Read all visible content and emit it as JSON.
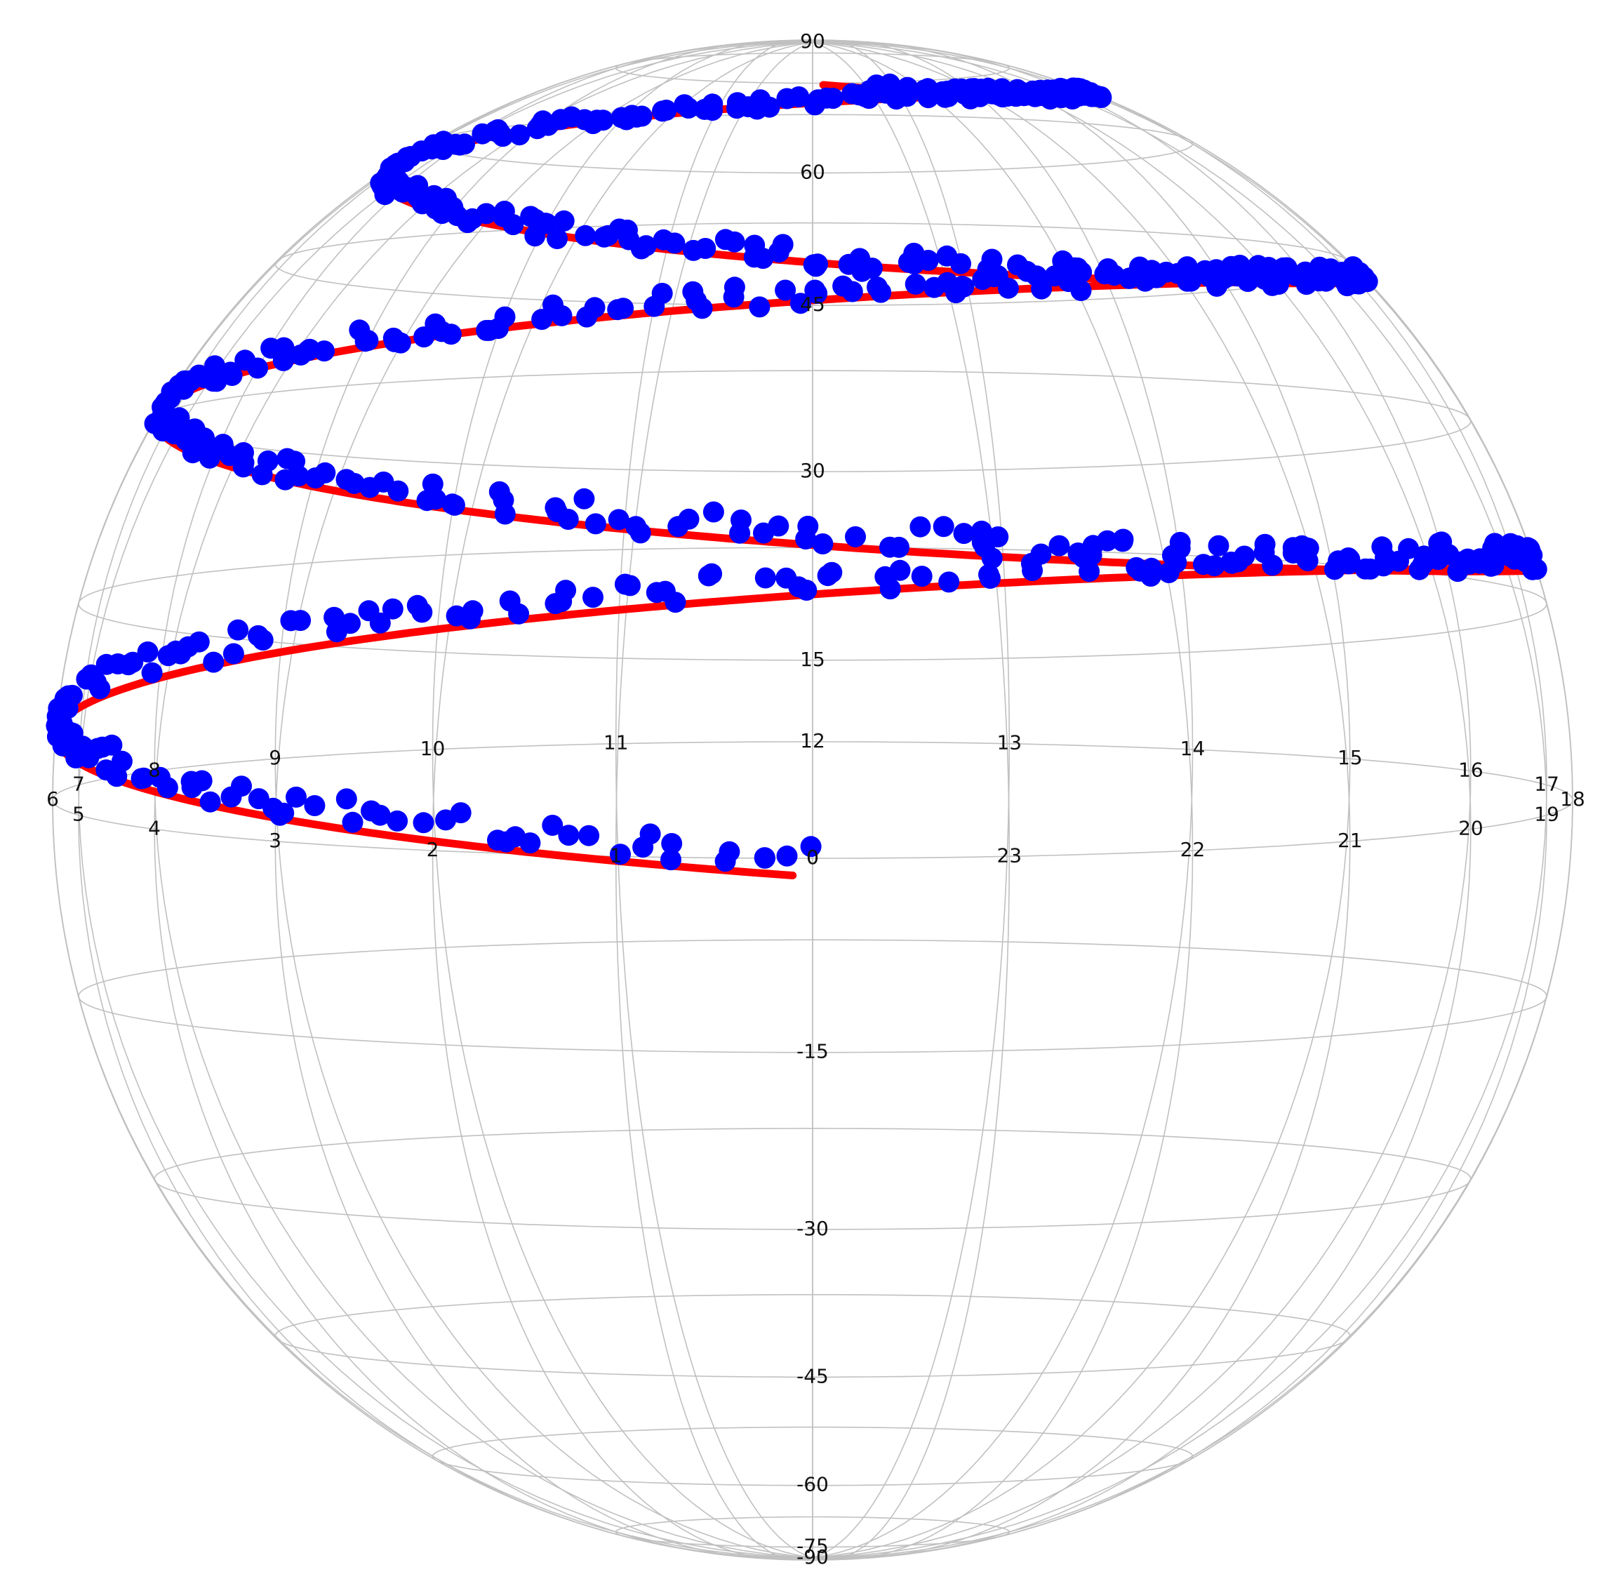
{
  "chart_data": {
    "type": "scatter",
    "projection": "orthographic globe (right ascension / declination)",
    "title": "",
    "grid": true,
    "colors": {
      "grid": "#c0c0c0",
      "line": "#ff0000",
      "points": "#0000ff",
      "text": "#111111"
    },
    "ra_tick_labels": [
      "0",
      "1",
      "2",
      "3",
      "4",
      "5",
      "6",
      "7",
      "8",
      "9",
      "10",
      "11",
      "12",
      "13",
      "14",
      "15",
      "16",
      "17",
      "18",
      "19",
      "20",
      "21",
      "22",
      "23"
    ],
    "dec_tick_labels": [
      "-90",
      "-75",
      "-60",
      "-45",
      "-30",
      "-15",
      "0",
      "15",
      "30",
      "45",
      "60",
      "90"
    ],
    "dec_gridlines": [
      -75,
      -60,
      -45,
      -30,
      -15,
      0,
      15,
      30,
      45,
      60,
      75
    ],
    "series": [
      {
        "kind": "line",
        "description": "smooth spiral curve (RA in hours, Dec in degrees)",
        "ra_start": 0.1,
        "ra_end": 71.8,
        "dec_start": -1.3,
        "dec_end": 74.6
      },
      {
        "kind": "scatter",
        "description": "noisy samples scattered along the spiral",
        "ra_range": [
          0.0,
          71.0
        ],
        "dec_range": [
          0.0,
          74.0
        ],
        "count": 700
      }
    ]
  }
}
